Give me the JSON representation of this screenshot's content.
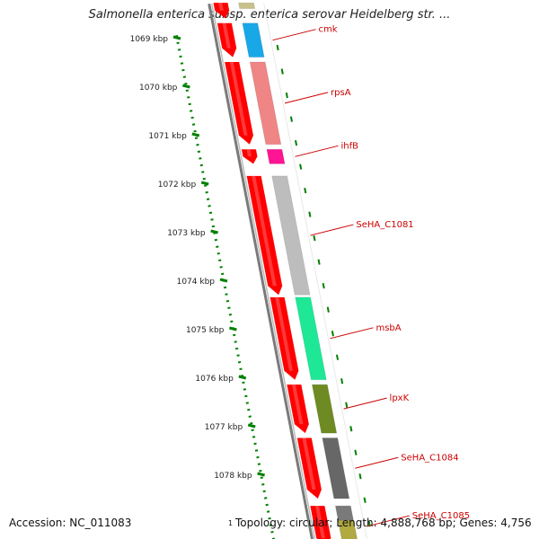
{
  "title": "Salmonella enterica subsp. enterica serovar Heidelberg str. ...",
  "footer": {
    "accession": "Accession: NC_011083",
    "mark": "1",
    "topology": "Topology: circular; Length: 4,888,768 bp; Genes: 4,756"
  },
  "scale": {
    "ticks": [
      "1069 kbp",
      "1070 kbp",
      "1071 kbp",
      "1072 kbp",
      "1073 kbp",
      "1074 kbp",
      "1075 kbp",
      "1076 kbp",
      "1077 kbp",
      "1078 kbp"
    ]
  },
  "colors": {
    "cds": "#ff0000",
    "axis": "#008000",
    "label": "#cc0000",
    "backbone": "#7a7a7a"
  },
  "features": [
    {
      "name": "",
      "cds_kb": [
        1068.28,
        1068.6
      ],
      "gene_kb": [
        1068.28,
        1068.4
      ],
      "color": "#c8c08a"
    },
    {
      "name": "cmk",
      "cds_kb": [
        1068.7,
        1069.4
      ],
      "gene_kb": [
        1068.7,
        1069.4
      ],
      "color": "#18a8e8"
    },
    {
      "name": "rpsA",
      "cds_kb": [
        1069.5,
        1071.2
      ],
      "gene_kb": [
        1069.5,
        1071.2
      ],
      "color": "#ef8585"
    },
    {
      "name": "ihfB",
      "cds_kb": [
        1071.3,
        1071.6
      ],
      "gene_kb": [
        1071.3,
        1071.6
      ],
      "color": "#ff1493"
    },
    {
      "name": "SeHA_C1081",
      "cds_kb": [
        1071.85,
        1074.3
      ],
      "gene_kb": [
        1071.85,
        1074.3
      ],
      "color": "#bdbdbd"
    },
    {
      "name": "msbA",
      "cds_kb": [
        1074.35,
        1076.05
      ],
      "gene_kb": [
        1074.35,
        1076.05
      ],
      "color": "#1ee896"
    },
    {
      "name": "lpxK",
      "cds_kb": [
        1076.15,
        1077.15
      ],
      "gene_kb": [
        1076.15,
        1077.15
      ],
      "color": "#6e8a22"
    },
    {
      "name": "SeHA_C1084",
      "cds_kb": [
        1077.25,
        1078.5
      ],
      "gene_kb": [
        1077.25,
        1078.5
      ],
      "color": "#676767"
    },
    {
      "name": "SeHA_C1085",
      "cds_kb": [
        1078.65,
        1079.5
      ],
      "gene_kb": [
        1078.65,
        1079.5
      ],
      "color": "#7a7a7a"
    },
    {
      "name": "",
      "cds_kb": [
        1078.95,
        1079.5
      ],
      "gene_kb": [
        1078.95,
        1079.5
      ],
      "color": "#b0aa40"
    }
  ]
}
